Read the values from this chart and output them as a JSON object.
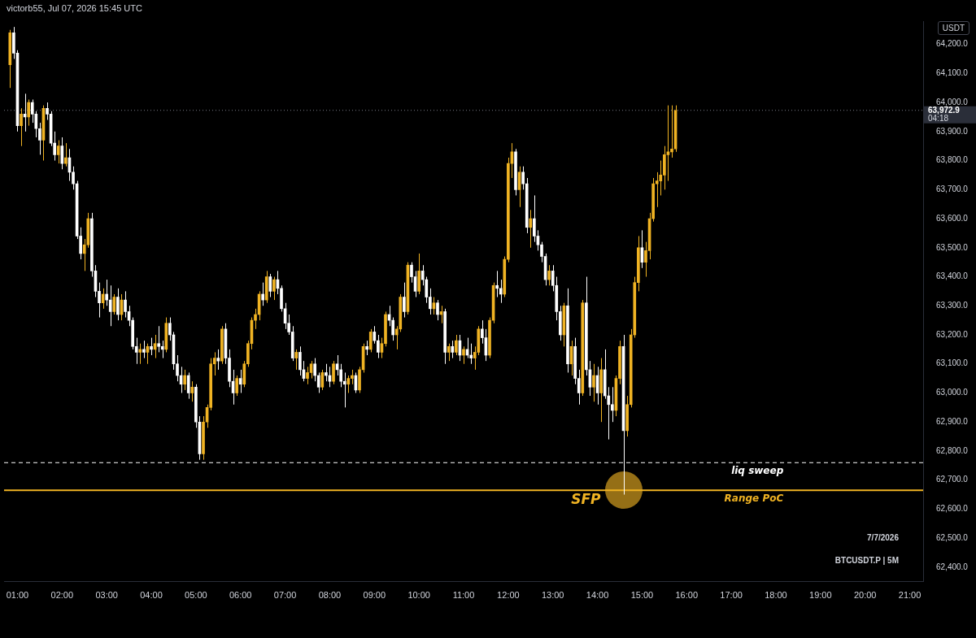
{
  "chart_data": {
    "type": "candlestick",
    "title": "victorb55, Jul 07, 2026 15:45 UTC",
    "ylabel": "USDT",
    "xlim": [
      0.7,
      21.3
    ],
    "xticks": [
      {
        "value": 1,
        "label": "01:00"
      },
      {
        "value": 2,
        "label": "02:00"
      },
      {
        "value": 3,
        "label": "03:00"
      },
      {
        "value": 4,
        "label": "04:00"
      },
      {
        "value": 5,
        "label": "05:00"
      },
      {
        "value": 6,
        "label": "06:00"
      },
      {
        "value": 7,
        "label": "07:00"
      },
      {
        "value": 8,
        "label": "08:00"
      },
      {
        "value": 9,
        "label": "09:00"
      },
      {
        "value": 10,
        "label": "10:00"
      },
      {
        "value": 11,
        "label": "11:00"
      },
      {
        "value": 12,
        "label": "12:00"
      },
      {
        "value": 13,
        "label": "13:00"
      },
      {
        "value": 14,
        "label": "14:00"
      },
      {
        "value": 15,
        "label": "15:00"
      },
      {
        "value": 16,
        "label": "16:00"
      },
      {
        "value": 17,
        "label": "17:00"
      },
      {
        "value": 18,
        "label": "18:00"
      },
      {
        "value": 19,
        "label": "19:00"
      },
      {
        "value": 20,
        "label": "20:00"
      },
      {
        "value": 21,
        "label": "21:00"
      }
    ],
    "ylim": [
      62350,
      64280
    ],
    "yticks": [
      {
        "value": 62400,
        "label": "62,400.0"
      },
      {
        "value": 62500,
        "label": "62,500.0"
      },
      {
        "value": 62600,
        "label": "62,600.0"
      },
      {
        "value": 62700,
        "label": "62,700.0"
      },
      {
        "value": 62800,
        "label": "62,800.0"
      },
      {
        "value": 62900,
        "label": "62,900.0"
      },
      {
        "value": 63000,
        "label": "63,000.0"
      },
      {
        "value": 63100,
        "label": "63,100.0"
      },
      {
        "value": 63200,
        "label": "63,200.0"
      },
      {
        "value": 63300,
        "label": "63,300.0"
      },
      {
        "value": 63400,
        "label": "63,400.0"
      },
      {
        "value": 63500,
        "label": "63,500.0"
      },
      {
        "value": 63600,
        "label": "63,600.0"
      },
      {
        "value": 63700,
        "label": "63,700.0"
      },
      {
        "value": 63800,
        "label": "63,800.0"
      },
      {
        "value": 63900,
        "label": "63,900.0"
      },
      {
        "value": 64000,
        "label": "64,000.0"
      },
      {
        "value": 64100,
        "label": "64,100.0"
      },
      {
        "value": 64200,
        "label": "64,200.0"
      }
    ],
    "x": [
      0.8333,
      0.9167,
      1,
      1.0833,
      1.1667,
      1.25,
      1.3333,
      1.4167,
      1.5,
      1.5833,
      1.6667,
      1.75,
      1.8333,
      1.9167,
      2,
      2.0833,
      2.1667,
      2.25,
      2.3333,
      2.4167,
      2.5,
      2.5833,
      2.6667,
      2.75,
      2.8333,
      2.9167,
      3,
      3.0833,
      3.1667,
      3.25,
      3.3333,
      3.4167,
      3.5,
      3.5833,
      3.6667,
      3.75,
      3.8333,
      3.9167,
      4,
      4.0833,
      4.1667,
      4.25,
      4.3333,
      4.4167,
      4.5,
      4.5833,
      4.6667,
      4.75,
      4.8333,
      4.9167,
      5,
      5.0833,
      5.1667,
      5.25,
      5.3333,
      5.4167,
      5.5,
      5.5833,
      5.6667,
      5.75,
      5.8333,
      5.9167,
      6,
      6.0833,
      6.1667,
      6.25,
      6.3333,
      6.4167,
      6.5,
      6.5833,
      6.6667,
      6.75,
      6.8333,
      6.9167,
      7,
      7.0833,
      7.1667,
      7.25,
      7.3333,
      7.4167,
      7.5,
      7.5833,
      7.6667,
      7.75,
      7.8333,
      7.9167,
      8,
      8.0833,
      8.1667,
      8.25,
      8.3333,
      8.4167,
      8.5,
      8.5833,
      8.6667,
      8.75,
      8.8333,
      8.9167,
      9,
      9.0833,
      9.1667,
      9.25,
      9.3333,
      9.4167,
      9.5,
      9.5833,
      9.6667,
      9.75,
      9.8333,
      9.9167,
      10,
      10.0833,
      10.1667,
      10.25,
      10.3333,
      10.4167,
      10.5,
      10.5833,
      10.6667,
      10.75,
      10.8333,
      10.9167,
      11,
      11.0833,
      11.1667,
      11.25,
      11.3333,
      11.4167,
      11.5,
      11.5833,
      11.6667,
      11.75,
      11.8333,
      11.9167,
      12,
      12.0833,
      12.1667,
      12.25,
      12.3333,
      12.4167,
      12.5,
      12.5833,
      12.6667,
      12.75,
      12.8333,
      12.9167,
      13,
      13.0833,
      13.1667,
      13.25,
      13.3333,
      13.4167,
      13.5,
      13.5833,
      13.6667,
      13.75,
      13.8333,
      13.9167,
      14,
      14.0833,
      14.1667,
      14.25,
      14.3333,
      14.4167,
      14.5,
      14.5833,
      14.6667,
      14.75,
      14.8333,
      14.9167,
      15,
      15.0833,
      15.1667,
      15.25,
      15.3333,
      15.4167,
      15.5,
      15.5833,
      15.6667,
      15.75
    ],
    "ohlc": [
      [
        64130,
        64250,
        64050,
        64240
      ],
      [
        64240,
        64260,
        64150,
        64170
      ],
      [
        64170,
        64180,
        63900,
        63920
      ],
      [
        63920,
        63980,
        63850,
        63960
      ],
      [
        63960,
        64030,
        63900,
        63950
      ],
      [
        63950,
        64010,
        63920,
        64000
      ],
      [
        64000,
        64010,
        63930,
        63960
      ],
      [
        63960,
        63970,
        63880,
        63910
      ],
      [
        63910,
        63930,
        63820,
        63870
      ],
      [
        63870,
        63990,
        63800,
        63980
      ],
      [
        63980,
        64000,
        63940,
        63960
      ],
      [
        63960,
        63970,
        63850,
        63860
      ],
      [
        63860,
        63900,
        63800,
        63820
      ],
      [
        63820,
        63870,
        63790,
        63850
      ],
      [
        63850,
        63880,
        63770,
        63790
      ],
      [
        63790,
        63860,
        63780,
        63810
      ],
      [
        63810,
        63840,
        63730,
        63760
      ],
      [
        63760,
        63780,
        63700,
        63720
      ],
      [
        63720,
        63730,
        63530,
        63540
      ],
      [
        63540,
        63570,
        63460,
        63480
      ],
      [
        63480,
        63530,
        63420,
        63510
      ],
      [
        63510,
        63620,
        63500,
        63600
      ],
      [
        63600,
        63620,
        63400,
        63420
      ],
      [
        63420,
        63440,
        63330,
        63350
      ],
      [
        63350,
        63380,
        63260,
        63310
      ],
      [
        63310,
        63360,
        63290,
        63340
      ],
      [
        63340,
        63390,
        63300,
        63320
      ],
      [
        63320,
        63370,
        63230,
        63280
      ],
      [
        63280,
        63340,
        63270,
        63330
      ],
      [
        63330,
        63360,
        63250,
        63270
      ],
      [
        63270,
        63340,
        63250,
        63320
      ],
      [
        63320,
        63350,
        63260,
        63280
      ],
      [
        63280,
        63300,
        63230,
        63250
      ],
      [
        63250,
        63260,
        63150,
        63160
      ],
      [
        63160,
        63190,
        63100,
        63140
      ],
      [
        63140,
        63170,
        63100,
        63150
      ],
      [
        63150,
        63180,
        63120,
        63140
      ],
      [
        63140,
        63170,
        63100,
        63160
      ],
      [
        63160,
        63190,
        63130,
        63150
      ],
      [
        63150,
        63200,
        63120,
        63170
      ],
      [
        63170,
        63230,
        63140,
        63160
      ],
      [
        63160,
        63180,
        63120,
        63150
      ],
      [
        63150,
        63260,
        63140,
        63240
      ],
      [
        63240,
        63260,
        63180,
        63200
      ],
      [
        63200,
        63210,
        63080,
        63100
      ],
      [
        63100,
        63130,
        63040,
        63060
      ],
      [
        63060,
        63090,
        63000,
        63030
      ],
      [
        63030,
        63080,
        63010,
        63060
      ],
      [
        63060,
        63070,
        62980,
        63000
      ],
      [
        63000,
        63040,
        62970,
        63020
      ],
      [
        63020,
        63030,
        62880,
        62900
      ],
      [
        62900,
        62920,
        62770,
        62790
      ],
      [
        62790,
        62920,
        62770,
        62900
      ],
      [
        62900,
        62960,
        62880,
        62950
      ],
      [
        62950,
        63120,
        62940,
        63100
      ],
      [
        63100,
        63140,
        63060,
        63120
      ],
      [
        63120,
        63150,
        63080,
        63110
      ],
      [
        63110,
        63230,
        63100,
        63220
      ],
      [
        63220,
        63240,
        63100,
        63120
      ],
      [
        63120,
        63150,
        63020,
        63040
      ],
      [
        63040,
        63080,
        62960,
        63000
      ],
      [
        63000,
        63060,
        62990,
        63050
      ],
      [
        63050,
        63080,
        63000,
        63030
      ],
      [
        63030,
        63110,
        63020,
        63100
      ],
      [
        63100,
        63180,
        63090,
        63170
      ],
      [
        63170,
        63260,
        63150,
        63250
      ],
      [
        63250,
        63290,
        63220,
        63270
      ],
      [
        63270,
        63350,
        63250,
        63340
      ],
      [
        63340,
        63380,
        63300,
        63320
      ],
      [
        63320,
        63420,
        63310,
        63400
      ],
      [
        63400,
        63410,
        63330,
        63350
      ],
      [
        63350,
        63400,
        63320,
        63390
      ],
      [
        63390,
        63420,
        63340,
        63360
      ],
      [
        63360,
        63370,
        63280,
        63290
      ],
      [
        63290,
        63310,
        63220,
        63240
      ],
      [
        63240,
        63270,
        63200,
        63210
      ],
      [
        63210,
        63230,
        63110,
        63120
      ],
      [
        63120,
        63150,
        63080,
        63140
      ],
      [
        63140,
        63160,
        63060,
        63080
      ],
      [
        63080,
        63110,
        63040,
        63050
      ],
      [
        63050,
        63090,
        63030,
        63070
      ],
      [
        63070,
        63110,
        63050,
        63100
      ],
      [
        63100,
        63120,
        63040,
        63060
      ],
      [
        63060,
        63070,
        63000,
        63020
      ],
      [
        63020,
        63080,
        63010,
        63070
      ],
      [
        63070,
        63100,
        63040,
        63060
      ],
      [
        63060,
        63090,
        63020,
        63040
      ],
      [
        63040,
        63110,
        63030,
        63100
      ],
      [
        63100,
        63130,
        63060,
        63080
      ],
      [
        63080,
        63100,
        63020,
        63040
      ],
      [
        63040,
        63070,
        62950,
        63030
      ],
      [
        63030,
        63060,
        63000,
        63050
      ],
      [
        63050,
        63080,
        63030,
        63060
      ],
      [
        63060,
        63070,
        63000,
        63010
      ],
      [
        63010,
        63090,
        63000,
        63080
      ],
      [
        63080,
        63170,
        63070,
        63160
      ],
      [
        63160,
        63180,
        63130,
        63150
      ],
      [
        63150,
        63220,
        63140,
        63210
      ],
      [
        63210,
        63230,
        63170,
        63180
      ],
      [
        63180,
        63200,
        63120,
        63140
      ],
      [
        63140,
        63190,
        63120,
        63170
      ],
      [
        63170,
        63280,
        63160,
        63270
      ],
      [
        63270,
        63300,
        63230,
        63250
      ],
      [
        63250,
        63260,
        63180,
        63200
      ],
      [
        63200,
        63230,
        63150,
        63220
      ],
      [
        63220,
        63340,
        63210,
        63330
      ],
      [
        63330,
        63380,
        63260,
        63280
      ],
      [
        63280,
        63450,
        63270,
        63440
      ],
      [
        63440,
        63450,
        63380,
        63400
      ],
      [
        63400,
        63420,
        63330,
        63350
      ],
      [
        63350,
        63480,
        63340,
        63420
      ],
      [
        63420,
        63440,
        63370,
        63390
      ],
      [
        63390,
        63400,
        63310,
        63330
      ],
      [
        63330,
        63360,
        63270,
        63290
      ],
      [
        63290,
        63330,
        63270,
        63310
      ],
      [
        63310,
        63320,
        63250,
        63270
      ],
      [
        63270,
        63300,
        63240,
        63280
      ],
      [
        63280,
        63290,
        63100,
        63140
      ],
      [
        63140,
        63170,
        63110,
        63160
      ],
      [
        63160,
        63180,
        63120,
        63140
      ],
      [
        63140,
        63200,
        63130,
        63180
      ],
      [
        63180,
        63200,
        63110,
        63130
      ],
      [
        63130,
        63160,
        63100,
        63150
      ],
      [
        63150,
        63190,
        63120,
        63130
      ],
      [
        63130,
        63170,
        63100,
        63120
      ],
      [
        63120,
        63160,
        63080,
        63140
      ],
      [
        63140,
        63230,
        63130,
        63220
      ],
      [
        63220,
        63250,
        63170,
        63190
      ],
      [
        63190,
        63220,
        63110,
        63130
      ],
      [
        63130,
        63260,
        63120,
        63250
      ],
      [
        63250,
        63380,
        63240,
        63370
      ],
      [
        63370,
        63420,
        63330,
        63360
      ],
      [
        63360,
        63390,
        63310,
        63340
      ],
      [
        63340,
        63470,
        63330,
        63460
      ],
      [
        63460,
        63810,
        63450,
        63790
      ],
      [
        63790,
        63860,
        63740,
        63830
      ],
      [
        63830,
        63840,
        63680,
        63700
      ],
      [
        63700,
        63780,
        63640,
        63760
      ],
      [
        63760,
        63780,
        63700,
        63720
      ],
      [
        63720,
        63740,
        63550,
        63570
      ],
      [
        63570,
        63630,
        63500,
        63600
      ],
      [
        63600,
        63680,
        63520,
        63540
      ],
      [
        63540,
        63560,
        63490,
        63510
      ],
      [
        63510,
        63520,
        63450,
        63470
      ],
      [
        63470,
        63480,
        63370,
        63390
      ],
      [
        63390,
        63440,
        63370,
        63420
      ],
      [
        63420,
        63440,
        63350,
        63370
      ],
      [
        63370,
        63400,
        63250,
        63280
      ],
      [
        63280,
        63300,
        63180,
        63200
      ],
      [
        63200,
        63310,
        63160,
        63300
      ],
      [
        63300,
        63360,
        63070,
        63100
      ],
      [
        63100,
        63180,
        63060,
        63160
      ],
      [
        63160,
        63190,
        63030,
        63050
      ],
      [
        63050,
        63080,
        62960,
        63000
      ],
      [
        63000,
        63320,
        62990,
        63310
      ],
      [
        63310,
        63400,
        63060,
        63080
      ],
      [
        63080,
        63110,
        62990,
        63020
      ],
      [
        63020,
        63100,
        62970,
        63060
      ],
      [
        63060,
        63090,
        62960,
        63000
      ],
      [
        63000,
        63120,
        62900,
        63080
      ],
      [
        63080,
        63150,
        62980,
        62990
      ],
      [
        62990,
        63020,
        62840,
        62960
      ],
      [
        62960,
        63020,
        62900,
        62940
      ],
      [
        62940,
        63060,
        62920,
        63050
      ],
      [
        63050,
        63180,
        63030,
        63160
      ],
      [
        63160,
        63200,
        62650,
        62870
      ],
      [
        62870,
        62990,
        62850,
        62960
      ],
      [
        62960,
        63220,
        62950,
        63200
      ],
      [
        63200,
        63400,
        63190,
        63380
      ],
      [
        63380,
        63540,
        63350,
        63500
      ],
      [
        63500,
        63560,
        63430,
        63450
      ],
      [
        63450,
        63520,
        63400,
        63490
      ],
      [
        63490,
        63620,
        63460,
        63600
      ],
      [
        63600,
        63740,
        63590,
        63720
      ],
      [
        63720,
        63760,
        63640,
        63730
      ],
      [
        63730,
        63800,
        63680,
        63750
      ],
      [
        63750,
        63850,
        63700,
        63820
      ],
      [
        63820,
        63990,
        63730,
        63830
      ],
      [
        63830,
        63990,
        63810,
        63840
      ],
      [
        63840,
        63990,
        63830,
        63972.9
      ]
    ],
    "colors": [
      "#f0b323",
      "#ffffff",
      "#ffffff",
      "#f0b323",
      "#ffffff",
      "#f0b323",
      "#ffffff",
      "#ffffff",
      "#ffffff",
      "#f0b323",
      "#ffffff",
      "#ffffff",
      "#ffffff",
      "#f0b323",
      "#ffffff",
      "#f0b323",
      "#ffffff",
      "#ffffff",
      "#ffffff",
      "#ffffff",
      "#f0b323",
      "#f0b323",
      "#ffffff",
      "#ffffff",
      "#ffffff",
      "#f0b323",
      "#ffffff",
      "#ffffff",
      "#f0b323",
      "#ffffff",
      "#f0b323",
      "#ffffff",
      "#ffffff",
      "#ffffff",
      "#ffffff",
      "#f0b323",
      "#ffffff",
      "#f0b323",
      "#ffffff",
      "#f0b323",
      "#ffffff",
      "#ffffff",
      "#f0b323",
      "#ffffff",
      "#ffffff",
      "#ffffff",
      "#ffffff",
      "#f0b323",
      "#ffffff",
      "#f0b323",
      "#ffffff",
      "#ffffff",
      "#f0b323",
      "#f0b323",
      "#f0b323",
      "#f0b323",
      "#ffffff",
      "#f0b323",
      "#ffffff",
      "#ffffff",
      "#ffffff",
      "#f0b323",
      "#ffffff",
      "#f0b323",
      "#f0b323",
      "#f0b323",
      "#f0b323",
      "#f0b323",
      "#ffffff",
      "#f0b323",
      "#ffffff",
      "#f0b323",
      "#ffffff",
      "#ffffff",
      "#ffffff",
      "#ffffff",
      "#ffffff",
      "#f0b323",
      "#ffffff",
      "#ffffff",
      "#f0b323",
      "#f0b323",
      "#ffffff",
      "#ffffff",
      "#f0b323",
      "#ffffff",
      "#ffffff",
      "#f0b323",
      "#ffffff",
      "#ffffff",
      "#ffffff",
      "#f0b323",
      "#f0b323",
      "#ffffff",
      "#f0b323",
      "#f0b323",
      "#ffffff",
      "#f0b323",
      "#ffffff",
      "#ffffff",
      "#f0b323",
      "#f0b323",
      "#ffffff",
      "#ffffff",
      "#f0b323",
      "#f0b323",
      "#ffffff",
      "#f0b323",
      "#ffffff",
      "#ffffff",
      "#f0b323",
      "#ffffff",
      "#ffffff",
      "#ffffff",
      "#f0b323",
      "#ffffff",
      "#f0b323",
      "#ffffff",
      "#f0b323",
      "#ffffff",
      "#f0b323",
      "#ffffff",
      "#f0b323",
      "#ffffff",
      "#ffffff",
      "#f0b323",
      "#f0b323",
      "#ffffff",
      "#ffffff",
      "#f0b323",
      "#f0b323",
      "#ffffff",
      "#ffffff",
      "#f0b323",
      "#f0b323",
      "#f0b323",
      "#ffffff",
      "#f0b323",
      "#ffffff",
      "#ffffff",
      "#f0b323",
      "#ffffff",
      "#ffffff",
      "#ffffff",
      "#ffffff",
      "#f0b323",
      "#ffffff",
      "#ffffff",
      "#ffffff",
      "#f0b323",
      "#ffffff",
      "#f0b323",
      "#ffffff",
      "#ffffff",
      "#f0b323",
      "#ffffff",
      "#ffffff",
      "#f0b323",
      "#ffffff",
      "#f0b323",
      "#ffffff",
      "#ffffff",
      "#ffffff",
      "#f0b323",
      "#f0b323",
      "#ffffff",
      "#f0b323",
      "#f0b323",
      "#f0b323",
      "#f0b323",
      "#ffffff",
      "#f0b323",
      "#f0b323",
      "#f0b323",
      "#f0b323",
      "#f0b323",
      "#f0b323",
      "#f0b323",
      "#f0b323",
      "#f0b323"
    ],
    "ref_lines": [
      {
        "axis": "y",
        "value": 62760,
        "label": "liq sweep",
        "color": "#ffffff",
        "line_style": "dashed"
      },
      {
        "axis": "y",
        "value": 62665,
        "label": "Range PoC",
        "color": "#f0b323",
        "line_style": "solid"
      },
      {
        "axis": "y",
        "value": 63972.9,
        "label": "63,972.9",
        "color": "#787b86",
        "line_style": "dotted"
      }
    ],
    "annotations": [
      {
        "text": "SFP",
        "x": 14.5833,
        "y": 62665
      },
      "7/7/2026",
      "BTCUSDT.P | 5M",
      "04:18"
    ],
    "grid": false,
    "legend": false
  }
}
